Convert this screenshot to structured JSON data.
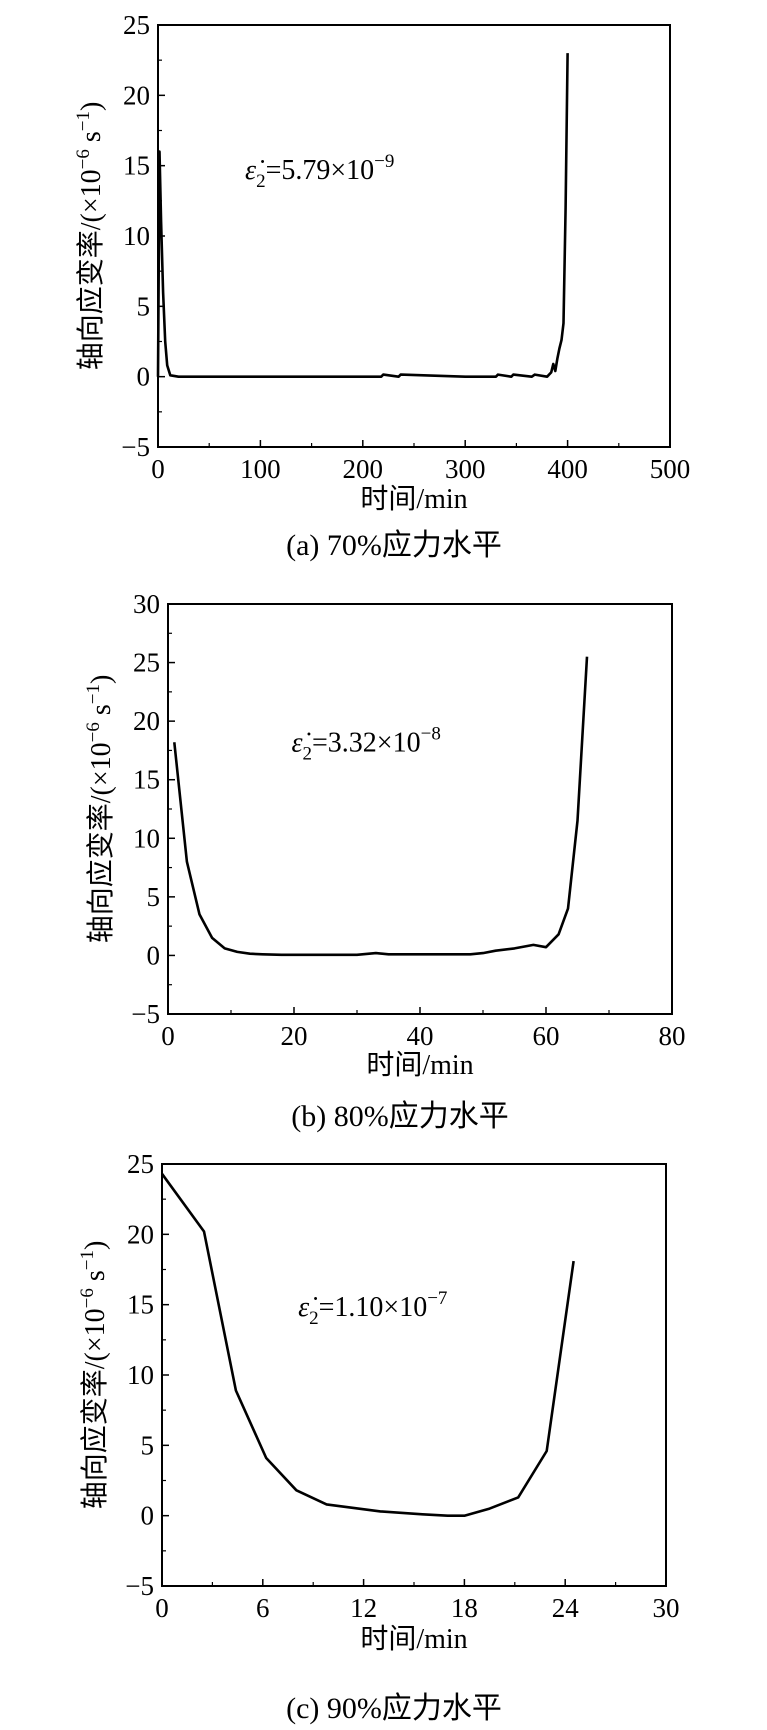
{
  "chart_data": [
    {
      "type": "line",
      "caption": "(a) 70%应力水平",
      "xlabel": "时间/min",
      "ylabel": "轴向应变率/(×10^-6 s^-1)",
      "xlim": [
        0,
        500
      ],
      "ylim": [
        -5,
        25
      ],
      "xticks": [
        0,
        100,
        200,
        300,
        400,
        500
      ],
      "yticks": [
        -5,
        0,
        5,
        10,
        15,
        20,
        25
      ],
      "annotation": "ε̇2=5.79×10^-9",
      "series": [
        {
          "x": [
            0,
            1.5,
            3,
            5,
            7,
            9,
            12,
            20,
            50,
            100,
            150,
            200,
            218,
            220,
            235,
            237,
            300,
            330,
            332,
            345,
            347,
            365,
            368,
            380,
            384,
            386,
            388,
            390,
            392,
            394,
            396,
            398,
            400
          ],
          "values": [
            0,
            16,
            11,
            6,
            2.5,
            0.8,
            0.1,
            0,
            0,
            0,
            0,
            0,
            0,
            0.15,
            0,
            0.15,
            0,
            0,
            0.15,
            0,
            0.15,
            0,
            0.15,
            0,
            0.3,
            0.9,
            0.4,
            1.3,
            2,
            2.6,
            3.8,
            12,
            23
          ]
        }
      ]
    },
    {
      "type": "line",
      "caption": "(b) 80%应力水平",
      "xlabel": "时间/min",
      "ylabel": "轴向应变率/(×10^-6 s^-1)",
      "xlim": [
        0,
        80
      ],
      "ylim": [
        -5,
        30
      ],
      "xticks": [
        0,
        20,
        40,
        60,
        80
      ],
      "yticks": [
        -5,
        0,
        5,
        10,
        15,
        20,
        25,
        30
      ],
      "annotation": "ε̇2=3.32×10^-8",
      "series": [
        {
          "x": [
            1,
            3,
            5,
            7,
            9,
            11,
            13,
            15,
            18,
            20,
            25,
            30,
            33,
            35,
            40,
            45,
            48,
            50,
            52,
            55,
            58,
            60,
            62,
            63.5,
            65,
            66.5
          ],
          "values": [
            18.2,
            8,
            3.5,
            1.5,
            0.6,
            0.3,
            0.15,
            0.1,
            0.05,
            0.05,
            0.05,
            0.05,
            0.2,
            0.1,
            0.1,
            0.1,
            0.1,
            0.2,
            0.4,
            0.6,
            0.9,
            0.7,
            1.8,
            4,
            11.5,
            25.5
          ]
        }
      ]
    },
    {
      "type": "line",
      "caption": "(c) 90%应力水平",
      "xlabel": "时间/min",
      "ylabel": "轴向应变率/(×10^-6 s^-1)",
      "xlim": [
        0,
        30
      ],
      "ylim": [
        -5,
        25
      ],
      "xticks": [
        0,
        6,
        12,
        18,
        24,
        30
      ],
      "yticks": [
        -5,
        0,
        5,
        10,
        15,
        20,
        25
      ],
      "annotation": "ε̇2=1.10×10^-7",
      "series": [
        {
          "x": [
            0,
            2.5,
            4.4,
            6.2,
            8,
            9.8,
            13,
            15.5,
            17,
            18,
            19.5,
            21.2,
            22.9,
            24.5
          ],
          "values": [
            24.3,
            20.2,
            8.9,
            4.1,
            1.8,
            0.8,
            0.3,
            0.1,
            0,
            0,
            0.5,
            1.3,
            4.6,
            18.1
          ]
        }
      ]
    }
  ]
}
